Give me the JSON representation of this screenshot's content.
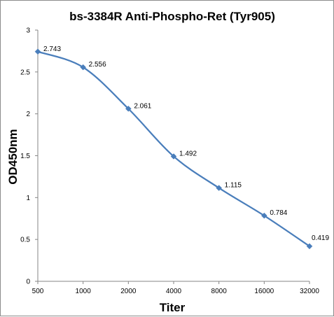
{
  "chart_data": {
    "type": "line",
    "title": "bs-3384R Anti-Phospho-Ret (Tyr905)",
    "xlabel": "Titer",
    "ylabel": "OD450nm",
    "categories": [
      "500",
      "1000",
      "2000",
      "4000",
      "8000",
      "16000",
      "32000"
    ],
    "series": [
      {
        "values": [
          2.743,
          2.556,
          2.061,
          1.492,
          1.115,
          0.784,
          0.419
        ],
        "labels": [
          "2.743",
          "2.556",
          "2.061",
          "1.492",
          "1.115",
          "0.784",
          "0.419"
        ],
        "color": "#4a7ebb"
      }
    ],
    "ylim": [
      0,
      3
    ],
    "yticks": [
      "0",
      "0.5",
      "1",
      "1.5",
      "2",
      "2.5",
      "3"
    ],
    "grid": false,
    "legend": "none"
  }
}
